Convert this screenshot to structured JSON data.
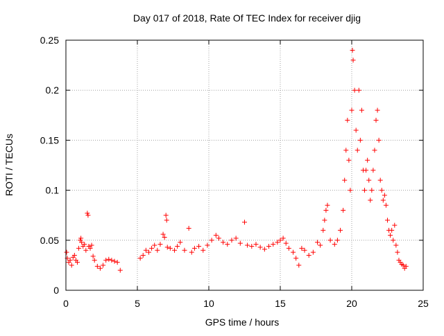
{
  "chart_data": {
    "type": "scatter",
    "title": "Day 017 of 2018, Rate Of TEC Index for receiver djig",
    "xlabel": "GPS time / hours",
    "ylabel": "ROTI / TECUs",
    "xlim": [
      0,
      25
    ],
    "ylim": [
      0,
      0.25
    ],
    "xticks": [
      0,
      5,
      10,
      15,
      20,
      25
    ],
    "xtick_labels": [
      "0",
      "5",
      "10",
      "15",
      "20",
      "25"
    ],
    "yticks": [
      0,
      0.05,
      0.1,
      0.15,
      0.2,
      0.25
    ],
    "ytick_labels": [
      "0",
      "0.05",
      "0.1",
      "0.15",
      "0.2",
      "0.25"
    ],
    "grid": true,
    "marker": "plus",
    "series_color": "#ff0000",
    "series": [
      {
        "name": "ROTI",
        "points": [
          [
            0.05,
            0.038
          ],
          [
            0.1,
            0.032
          ],
          [
            0.2,
            0.028
          ],
          [
            0.3,
            0.03
          ],
          [
            0.4,
            0.025
          ],
          [
            0.5,
            0.033
          ],
          [
            0.6,
            0.035
          ],
          [
            0.7,
            0.03
          ],
          [
            0.8,
            0.028
          ],
          [
            0.9,
            0.042
          ],
          [
            1.0,
            0.05
          ],
          [
            1.05,
            0.052
          ],
          [
            1.1,
            0.048
          ],
          [
            1.2,
            0.044
          ],
          [
            1.3,
            0.046
          ],
          [
            1.4,
            0.04
          ],
          [
            1.5,
            0.077
          ],
          [
            1.55,
            0.075
          ],
          [
            1.6,
            0.044
          ],
          [
            1.7,
            0.042
          ],
          [
            1.8,
            0.045
          ],
          [
            1.9,
            0.034
          ],
          [
            2.0,
            0.03
          ],
          [
            2.2,
            0.024
          ],
          [
            2.4,
            0.022
          ],
          [
            2.6,
            0.025
          ],
          [
            2.8,
            0.03
          ],
          [
            3.0,
            0.031
          ],
          [
            3.2,
            0.03
          ],
          [
            3.4,
            0.029
          ],
          [
            3.6,
            0.028
          ],
          [
            3.8,
            0.02
          ],
          [
            5.2,
            0.032
          ],
          [
            5.4,
            0.035
          ],
          [
            5.6,
            0.04
          ],
          [
            5.8,
            0.038
          ],
          [
            6.0,
            0.042
          ],
          [
            6.2,
            0.045
          ],
          [
            6.4,
            0.04
          ],
          [
            6.6,
            0.046
          ],
          [
            6.8,
            0.056
          ],
          [
            6.9,
            0.053
          ],
          [
            7.0,
            0.075
          ],
          [
            7.05,
            0.07
          ],
          [
            7.1,
            0.043
          ],
          [
            7.3,
            0.042
          ],
          [
            7.6,
            0.04
          ],
          [
            7.8,
            0.044
          ],
          [
            8.0,
            0.048
          ],
          [
            8.3,
            0.04
          ],
          [
            8.6,
            0.062
          ],
          [
            8.8,
            0.038
          ],
          [
            9.0,
            0.042
          ],
          [
            9.3,
            0.044
          ],
          [
            9.6,
            0.04
          ],
          [
            9.9,
            0.045
          ],
          [
            10.2,
            0.05
          ],
          [
            10.5,
            0.055
          ],
          [
            10.7,
            0.052
          ],
          [
            11.0,
            0.048
          ],
          [
            11.3,
            0.046
          ],
          [
            11.6,
            0.05
          ],
          [
            11.9,
            0.052
          ],
          [
            12.2,
            0.047
          ],
          [
            12.5,
            0.068
          ],
          [
            12.7,
            0.045
          ],
          [
            13.0,
            0.044
          ],
          [
            13.3,
            0.046
          ],
          [
            13.6,
            0.043
          ],
          [
            13.9,
            0.041
          ],
          [
            14.2,
            0.044
          ],
          [
            14.5,
            0.046
          ],
          [
            14.8,
            0.048
          ],
          [
            15.0,
            0.05
          ],
          [
            15.2,
            0.052
          ],
          [
            15.4,
            0.047
          ],
          [
            15.6,
            0.042
          ],
          [
            15.9,
            0.038
          ],
          [
            16.1,
            0.032
          ],
          [
            16.3,
            0.025
          ],
          [
            16.5,
            0.042
          ],
          [
            16.7,
            0.04
          ],
          [
            17.0,
            0.035
          ],
          [
            17.3,
            0.038
          ],
          [
            17.6,
            0.048
          ],
          [
            17.8,
            0.045
          ],
          [
            18.0,
            0.06
          ],
          [
            18.1,
            0.07
          ],
          [
            18.2,
            0.08
          ],
          [
            18.3,
            0.085
          ],
          [
            18.5,
            0.05
          ],
          [
            18.8,
            0.046
          ],
          [
            19.0,
            0.05
          ],
          [
            19.2,
            0.06
          ],
          [
            19.4,
            0.08
          ],
          [
            19.5,
            0.11
          ],
          [
            19.6,
            0.14
          ],
          [
            19.7,
            0.17
          ],
          [
            19.8,
            0.13
          ],
          [
            19.9,
            0.1
          ],
          [
            20.0,
            0.18
          ],
          [
            20.05,
            0.24
          ],
          [
            20.1,
            0.23
          ],
          [
            20.2,
            0.2
          ],
          [
            20.3,
            0.16
          ],
          [
            20.4,
            0.14
          ],
          [
            20.5,
            0.2
          ],
          [
            20.6,
            0.15
          ],
          [
            20.7,
            0.18
          ],
          [
            20.8,
            0.12
          ],
          [
            20.9,
            0.1
          ],
          [
            21.0,
            0.12
          ],
          [
            21.1,
            0.13
          ],
          [
            21.2,
            0.11
          ],
          [
            21.3,
            0.09
          ],
          [
            21.4,
            0.1
          ],
          [
            21.5,
            0.12
          ],
          [
            21.6,
            0.14
          ],
          [
            21.7,
            0.17
          ],
          [
            21.8,
            0.18
          ],
          [
            21.9,
            0.15
          ],
          [
            22.0,
            0.11
          ],
          [
            22.1,
            0.1
          ],
          [
            22.2,
            0.09
          ],
          [
            22.3,
            0.095
          ],
          [
            22.4,
            0.085
          ],
          [
            22.5,
            0.07
          ],
          [
            22.6,
            0.06
          ],
          [
            22.7,
            0.055
          ],
          [
            22.8,
            0.06
          ],
          [
            22.9,
            0.05
          ],
          [
            23.0,
            0.065
          ],
          [
            23.1,
            0.045
          ],
          [
            23.2,
            0.038
          ],
          [
            23.3,
            0.03
          ],
          [
            23.4,
            0.028
          ],
          [
            23.5,
            0.026
          ],
          [
            23.6,
            0.025
          ],
          [
            23.7,
            0.022
          ],
          [
            23.8,
            0.024
          ]
        ]
      }
    ]
  }
}
